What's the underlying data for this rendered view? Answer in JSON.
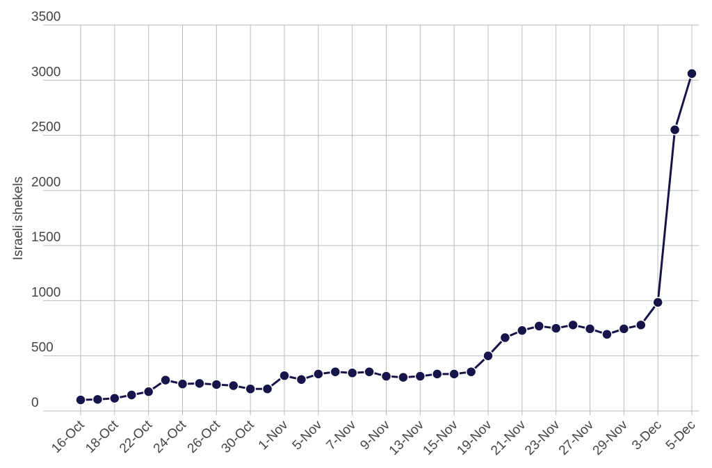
{
  "chart_data": {
    "type": "line",
    "y_label": "Israeli shekels",
    "categories": [
      "16-Oct",
      null,
      "18-Oct",
      null,
      "22-Oct",
      null,
      "24-Oct",
      null,
      "26-Oct",
      null,
      "30-Oct",
      null,
      "1-Nov",
      null,
      "5-Nov",
      null,
      "7-Nov",
      null,
      "9-Nov",
      null,
      "13-Nov",
      null,
      "15-Nov",
      null,
      "19-Nov",
      null,
      "21-Nov",
      null,
      "23-Nov",
      null,
      "27-Nov",
      null,
      "29-Nov",
      null,
      "3-Dec",
      null,
      "5-Dec"
    ],
    "series": [
      {
        "color": "#17144a",
        "values": [
          100,
          105,
          115,
          145,
          175,
          280,
          245,
          250,
          240,
          230,
          200,
          200,
          320,
          285,
          335,
          355,
          345,
          355,
          315,
          305,
          315,
          335,
          335,
          355,
          500,
          665,
          730,
          770,
          750,
          780,
          745,
          695,
          745,
          780,
          985,
          2550,
          3060
        ]
      }
    ],
    "ylim": [
      0,
      3500
    ],
    "yticks": [
      0,
      500,
      1000,
      1500,
      2000,
      2500,
      3000,
      3500
    ],
    "grid": true
  }
}
